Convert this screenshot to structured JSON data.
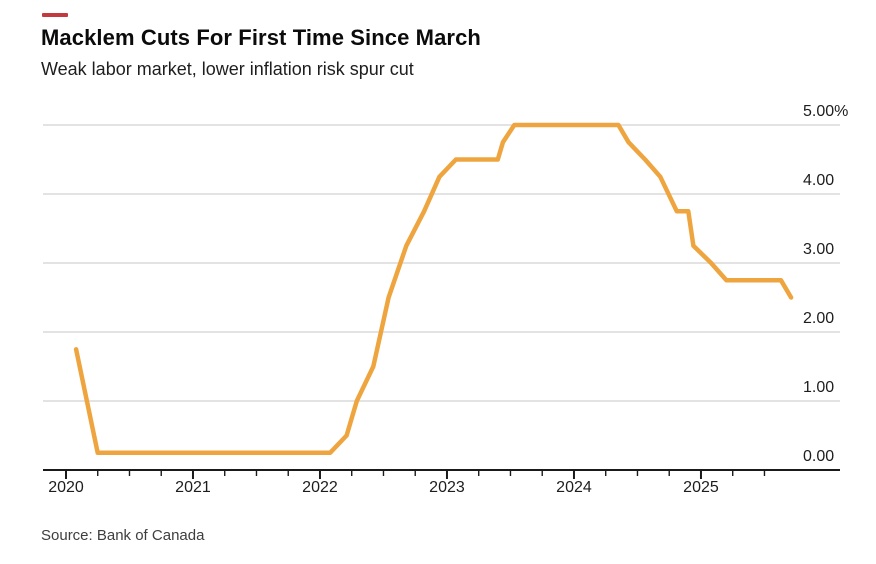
{
  "accent": {
    "color": "#c2393e"
  },
  "header": {
    "title": "Macklem Cuts For First Time Since March",
    "subtitle": "Weak labor market, lower inflation risk spur cut"
  },
  "footer": {
    "source": "Source: Bank of Canada"
  },
  "chart_data": {
    "type": "line",
    "title": "Macklem Cuts For First Time Since March",
    "subtitle": "Weak labor market, lower inflation risk spur cut",
    "source": "Source: Bank of Canada",
    "unit": "%",
    "line_color": "#EFA53F",
    "grid_color": "#DADADA",
    "axis_color": "#1a1a1a",
    "grid": "horizontal",
    "legend": null,
    "xlim": [
      2019.819,
      2026.079
    ],
    "ylim": [
      0,
      5
    ],
    "ytick_values": [
      0,
      1,
      2,
      3,
      4,
      5
    ],
    "ytick_labels": [
      "0.00",
      "1.00",
      "2.00",
      "3.00",
      "4.00",
      "5.00%"
    ],
    "xtick_years": [
      2020,
      2021,
      2022,
      2023,
      2024,
      2025
    ],
    "minor_tick_interval_years": 0.25,
    "minor_tick_end": 2025.5,
    "series": [
      {
        "name": "policy-rate",
        "points": [
          [
            2020.08,
            1.75
          ],
          [
            2020.25,
            0.25
          ],
          [
            2022.08,
            0.25
          ],
          [
            2022.21,
            0.5
          ],
          [
            2022.29,
            1.0
          ],
          [
            2022.42,
            1.5
          ],
          [
            2022.54,
            2.5
          ],
          [
            2022.68,
            3.25
          ],
          [
            2022.82,
            3.75
          ],
          [
            2022.94,
            4.25
          ],
          [
            2023.07,
            4.5
          ],
          [
            2023.4,
            4.5
          ],
          [
            2023.44,
            4.75
          ],
          [
            2023.53,
            5.0
          ],
          [
            2024.35,
            5.0
          ],
          [
            2024.43,
            4.75
          ],
          [
            2024.56,
            4.5
          ],
          [
            2024.68,
            4.25
          ],
          [
            2024.81,
            3.75
          ],
          [
            2024.9,
            3.75
          ],
          [
            2024.94,
            3.25
          ],
          [
            2025.08,
            3.0
          ],
          [
            2025.2,
            2.75
          ],
          [
            2025.63,
            2.75
          ],
          [
            2025.71,
            2.5
          ]
        ]
      }
    ]
  }
}
